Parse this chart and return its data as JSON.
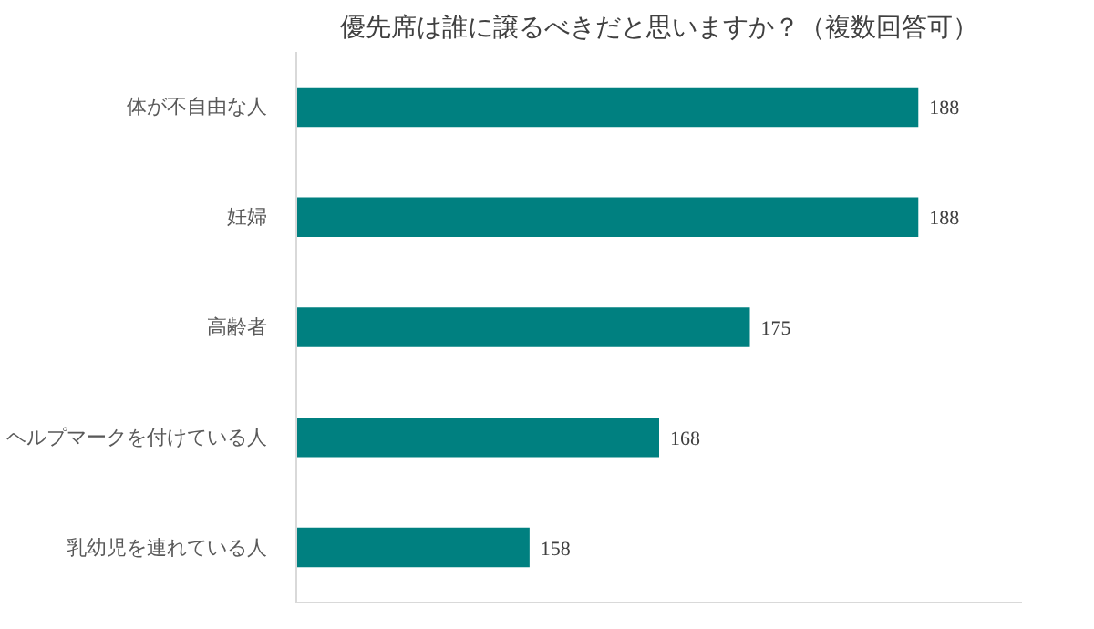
{
  "chart_data": {
    "type": "bar",
    "orientation": "horizontal",
    "title": "優先席は誰に譲るべきだと思いますか？（複数回答可）",
    "categories": [
      "体が不自由な人",
      "妊婦",
      "高齢者",
      "ヘルプマークを付けている人",
      "乳幼児を連れている人"
    ],
    "values": [
      188,
      188,
      175,
      168,
      158
    ],
    "color": "#008080",
    "data_labels": true,
    "xlim": [
      140,
      196
    ],
    "tick_labels": "y",
    "grid": false
  }
}
